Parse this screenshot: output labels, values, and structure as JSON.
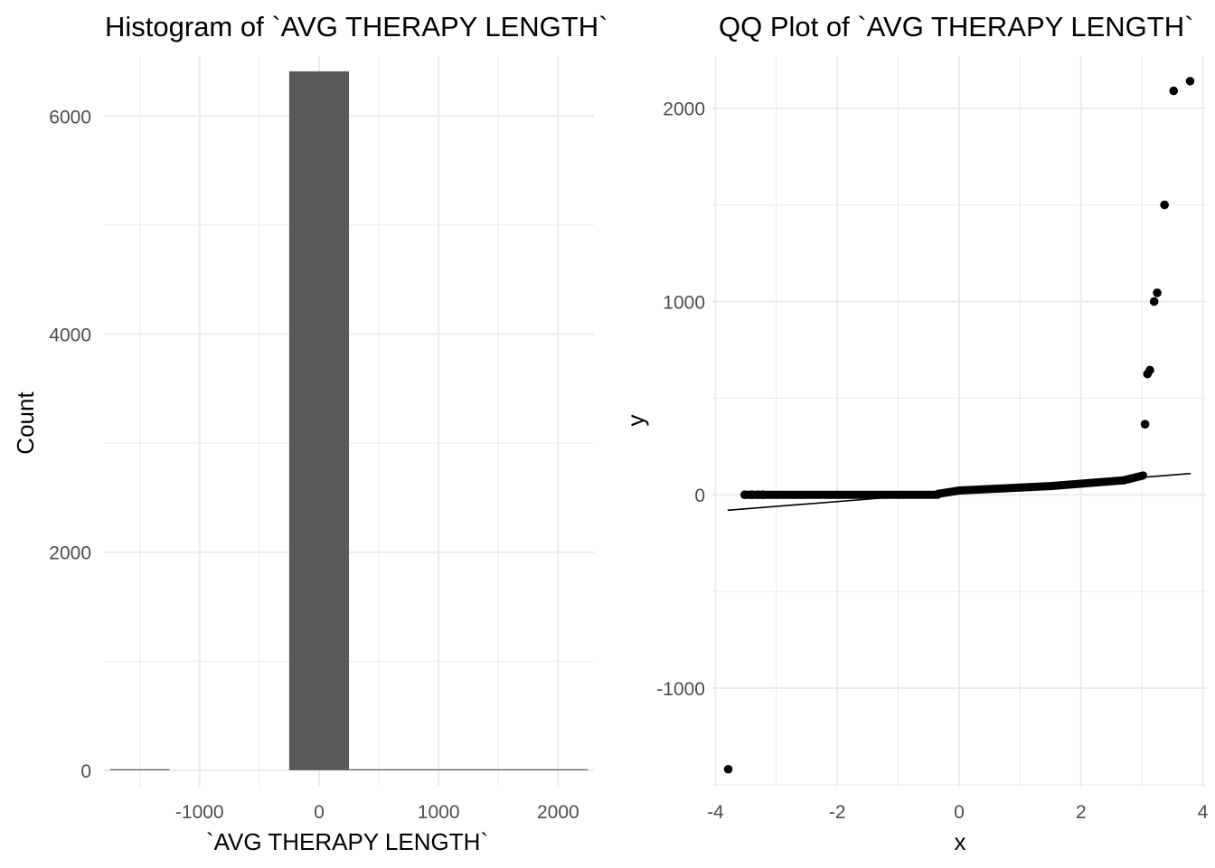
{
  "chart_data": [
    {
      "type": "bar",
      "subtype": "histogram",
      "title": "Histogram of `AVG THERAPY LENGTH`",
      "xlabel": "`AVG THERAPY LENGTH`",
      "ylabel": "Count",
      "xlim": [
        -1800,
        2300
      ],
      "ylim": [
        -150,
        6550
      ],
      "xticks": [
        -1000,
        0,
        1000,
        2000
      ],
      "yticks": [
        0,
        2000,
        4000,
        6000
      ],
      "grid": true,
      "bar_color": "#595959",
      "bins": [
        {
          "x0": -1750,
          "x1": -1250,
          "count": 3
        },
        {
          "x0": -250,
          "x1": 250,
          "count": 6410
        },
        {
          "x0": 250,
          "x1": 750,
          "count": 4
        },
        {
          "x0": 750,
          "x1": 1250,
          "count": 3
        },
        {
          "x0": 1250,
          "x1": 1750,
          "count": 1
        },
        {
          "x0": 1750,
          "x1": 2250,
          "count": 2
        }
      ]
    },
    {
      "type": "scatter",
      "subtype": "qq",
      "title": "QQ Plot of `AVG THERAPY LENGTH`",
      "xlabel": "x",
      "ylabel": "y",
      "xlim": [
        -4.05,
        4.05
      ],
      "ylim": [
        -1510,
        2270
      ],
      "xticks": [
        -4,
        -2,
        0,
        2,
        4
      ],
      "yticks": [
        -1000,
        0,
        1000,
        2000
      ],
      "grid": true,
      "point_color": "#000000",
      "reference_line": {
        "x": [
          -3.8,
          3.8
        ],
        "y": [
          -80,
          110
        ]
      },
      "body_segments": [
        {
          "x0": -3.5,
          "x1": -0.35,
          "y": 0
        },
        {
          "x0": -0.35,
          "x1": 0.0,
          "y0": 5,
          "y1": 22
        },
        {
          "x0": 0.0,
          "x1": 1.5,
          "y0": 22,
          "y1": 45
        },
        {
          "x0": 1.5,
          "x1": 2.7,
          "y0": 45,
          "y1": 75
        },
        {
          "x0": 2.7,
          "x1": 3.02,
          "y0": 75,
          "y1": 100
        }
      ],
      "points": [
        {
          "x": -3.79,
          "y": -1420
        },
        {
          "x": -3.52,
          "y": 0
        },
        {
          "x": -3.4,
          "y": 0
        },
        {
          "x": -3.3,
          "y": 0
        },
        {
          "x": -3.22,
          "y": 0
        },
        {
          "x": 3.05,
          "y": 365
        },
        {
          "x": 3.09,
          "y": 625
        },
        {
          "x": 3.13,
          "y": 645
        },
        {
          "x": 3.2,
          "y": 1000
        },
        {
          "x": 3.25,
          "y": 1045
        },
        {
          "x": 3.37,
          "y": 1500
        },
        {
          "x": 3.52,
          "y": 2090
        },
        {
          "x": 3.79,
          "y": 2140
        }
      ]
    }
  ]
}
